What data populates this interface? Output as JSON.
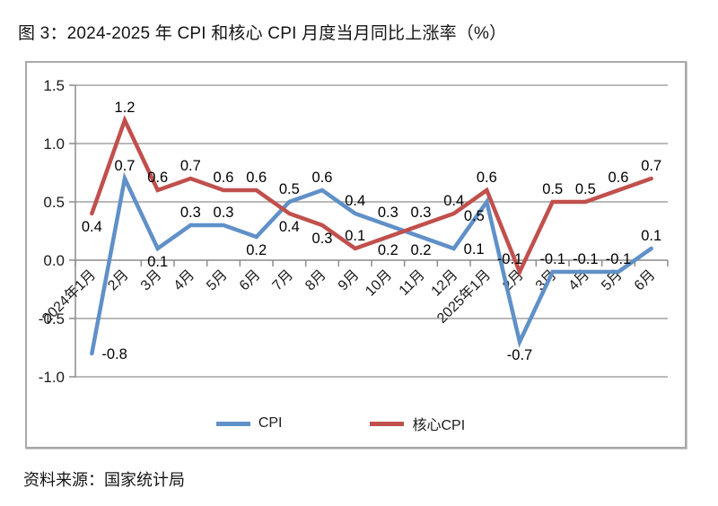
{
  "page": {
    "title": "图 3：2024-2025 年 CPI 和核心 CPI 月度当月同比上涨率（%）",
    "source": "资料来源：国家统计局"
  },
  "chart_data": {
    "type": "line",
    "title": "2024-2025 年 CPI 和核心 CPI 月度当月同比上涨率（%）",
    "categories": [
      "2024年1月",
      "2月",
      "3月",
      "4月",
      "5月",
      "6月",
      "7月",
      "8月",
      "9月",
      "10月",
      "11月",
      "12月",
      "2025年1月",
      "2月",
      "3月",
      "4月",
      "5月",
      "6月"
    ],
    "series": [
      {
        "name": "CPI",
        "color": "#6090c8",
        "values": [
          -0.8,
          0.7,
          0.1,
          0.3,
          0.3,
          0.2,
          0.5,
          0.6,
          0.4,
          0.3,
          0.2,
          0.1,
          0.5,
          -0.7,
          -0.1,
          -0.1,
          -0.1,
          0.1
        ],
        "label_pos": [
          "right",
          "above",
          "below",
          "above",
          "above",
          "below",
          "above",
          "above",
          "above",
          "above",
          "below",
          "right",
          "below-left",
          "below",
          "above",
          "above",
          "above",
          "above"
        ]
      },
      {
        "name": "核心CPI",
        "color": "#c0504d",
        "values": [
          0.4,
          1.2,
          0.6,
          0.7,
          0.6,
          0.6,
          0.4,
          0.3,
          0.1,
          0.2,
          0.3,
          0.4,
          0.6,
          -0.1,
          0.5,
          0.5,
          0.6,
          0.7
        ],
        "label_pos": [
          "below",
          "above",
          "above",
          "above",
          "above",
          "above",
          "below",
          "below",
          "above",
          "below",
          "above",
          "above",
          "above",
          "above-left",
          "above",
          "above",
          "above",
          "above"
        ]
      }
    ],
    "xlabel": "",
    "ylabel": "",
    "ylim": [
      -1.0,
      1.5
    ],
    "y_ticks": [
      1.5,
      1.0,
      0.5,
      0.0,
      -0.5,
      -1.0
    ],
    "y_tick_labels": [
      "1.5",
      "1.0",
      "0.5",
      "0.0",
      "-0.5",
      "-1.0"
    ],
    "grid": true,
    "legend_position": "bottom",
    "grid_color": "#a3a3a3",
    "axis_color": "#8c8c8c",
    "line_width": 4.5
  }
}
